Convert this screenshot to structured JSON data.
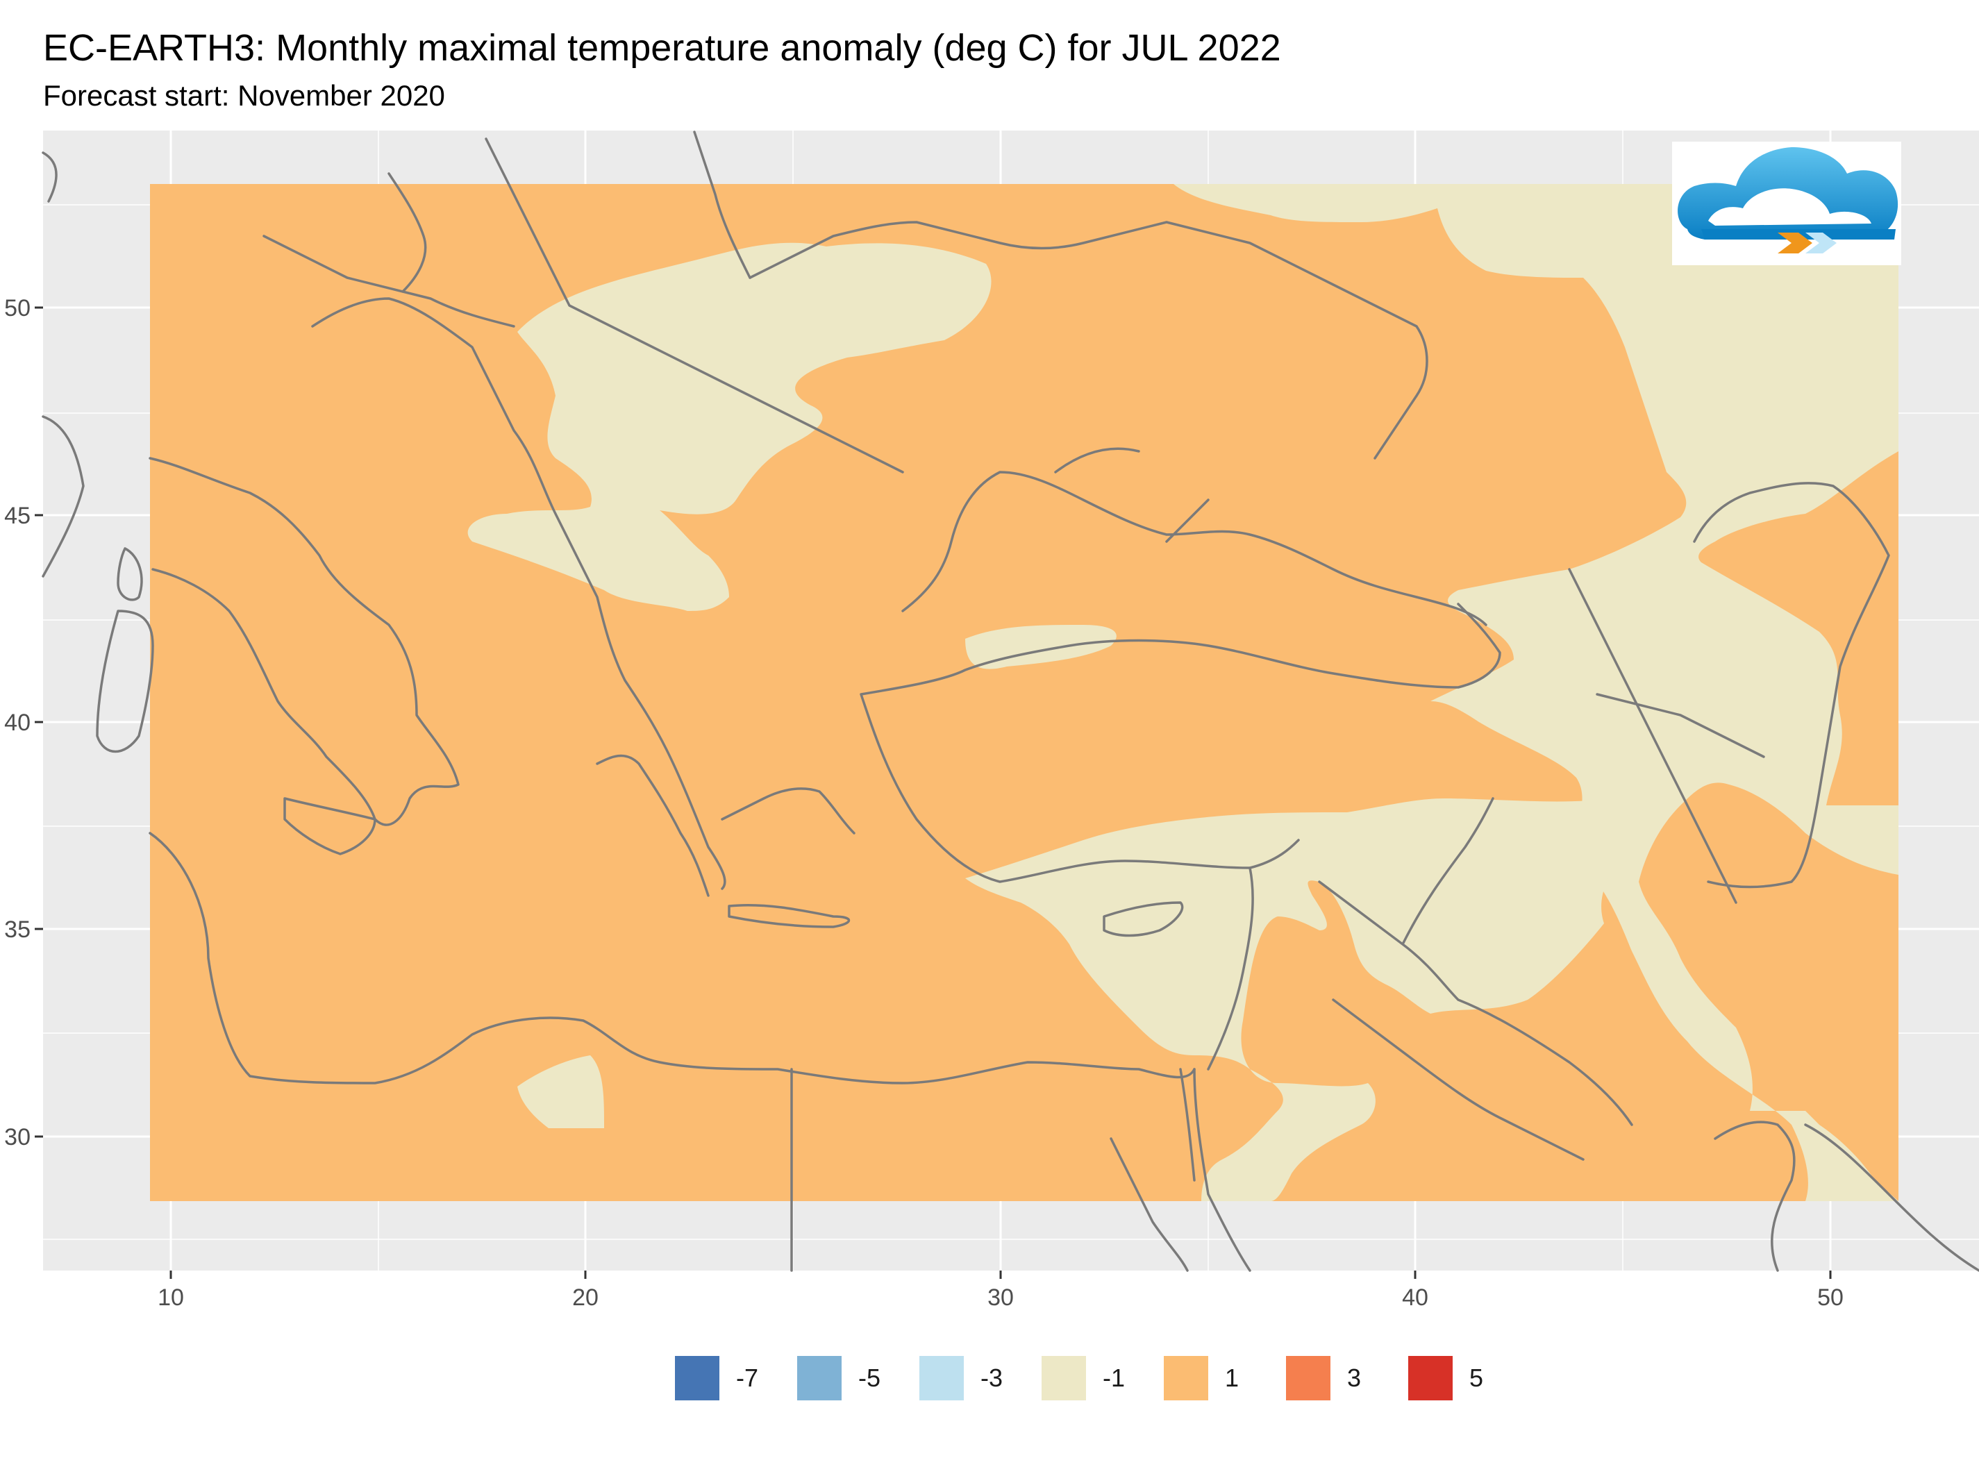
{
  "title": "EC-EARTH3: Monthly maximal temperature anomaly (deg C) for JUL 2022",
  "subtitle": "Forecast start: November 2020",
  "axes": {
    "x_ticks": [
      "10",
      "20",
      "30",
      "40",
      "50"
    ],
    "y_ticks": [
      "50",
      "45",
      "40",
      "35",
      "30"
    ],
    "xlim": [
      7,
      54
    ],
    "ylim": [
      27,
      54
    ],
    "grid": true
  },
  "logo": {
    "name": "cloud-logo"
  },
  "legend": {
    "items": [
      {
        "label": "-7",
        "color": "#4575b4"
      },
      {
        "label": "-5",
        "color": "#7fb2d5"
      },
      {
        "label": "-3",
        "color": "#bde0ef"
      },
      {
        "label": "-1",
        "color": "#ede8c6"
      },
      {
        "label": "1",
        "color": "#fbbc72"
      },
      {
        "label": "3",
        "color": "#f57f4e"
      },
      {
        "label": "5",
        "color": "#d73127"
      }
    ]
  },
  "colors": {
    "panel_bg": "#ebebeb",
    "grid": "#ffffff",
    "coast": "#7a7a7a",
    "warm": "#fbbc72",
    "neutral": "#ede8c6"
  }
}
